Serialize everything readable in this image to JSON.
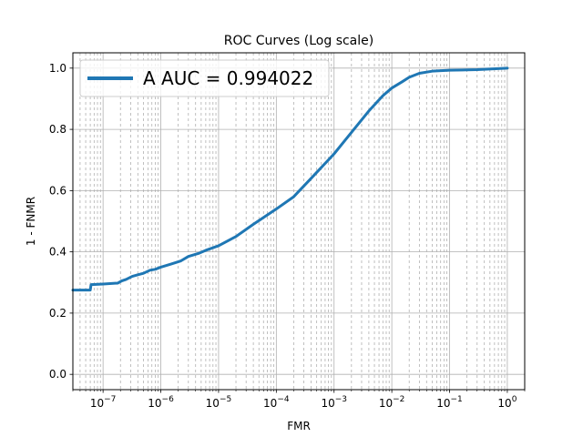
{
  "chart_data": {
    "type": "line",
    "title": "ROC Curves (Log scale)",
    "xlabel": "FMR",
    "ylabel": "1 - FNMR",
    "x_scale": "log",
    "xlim": [
      3e-08,
      2
    ],
    "ylim": [
      -0.05,
      1.05
    ],
    "x_ticks": [
      1e-07,
      1e-06,
      1e-05,
      0.0001,
      0.001,
      0.01,
      0.1,
      1
    ],
    "x_tick_labels": [
      "10",
      "10",
      "10",
      "10",
      "10",
      "10",
      "10",
      "10"
    ],
    "x_tick_exponents": [
      "−7",
      "−6",
      "−5",
      "−4",
      "−3",
      "−2",
      "−1",
      "0"
    ],
    "y_ticks": [
      0.0,
      0.2,
      0.4,
      0.6,
      0.8,
      1.0
    ],
    "y_tick_labels": [
      "0.0",
      "0.2",
      "0.4",
      "0.6",
      "0.8",
      "1.0"
    ],
    "grid": true,
    "minor_grid": true,
    "legend_position": "top-left",
    "series": [
      {
        "name": "A AUC = 0.994022",
        "color": "#1f77b4",
        "x": [
          3e-08,
          6e-08,
          6.2e-08,
          1e-07,
          1.8e-07,
          2.1e-07,
          2.5e-07,
          3.2e-07,
          4e-07,
          5e-07,
          6.5e-07,
          8e-07,
          1e-06,
          1.5e-06,
          2.2e-06,
          3e-06,
          4.5e-06,
          6e-06,
          1e-05,
          2e-05,
          4e-05,
          0.0001,
          0.0002,
          0.0004,
          0.001,
          0.002,
          0.004,
          0.007,
          0.01,
          0.015,
          0.02,
          0.03,
          0.05,
          0.1,
          0.3,
          1
        ],
        "y": [
          0.275,
          0.275,
          0.293,
          0.295,
          0.298,
          0.305,
          0.31,
          0.32,
          0.325,
          0.33,
          0.34,
          0.343,
          0.35,
          0.36,
          0.37,
          0.385,
          0.395,
          0.405,
          0.42,
          0.45,
          0.49,
          0.54,
          0.58,
          0.64,
          0.72,
          0.79,
          0.86,
          0.91,
          0.935,
          0.955,
          0.97,
          0.983,
          0.99,
          0.993,
          0.995,
          1.0
        ]
      }
    ]
  }
}
